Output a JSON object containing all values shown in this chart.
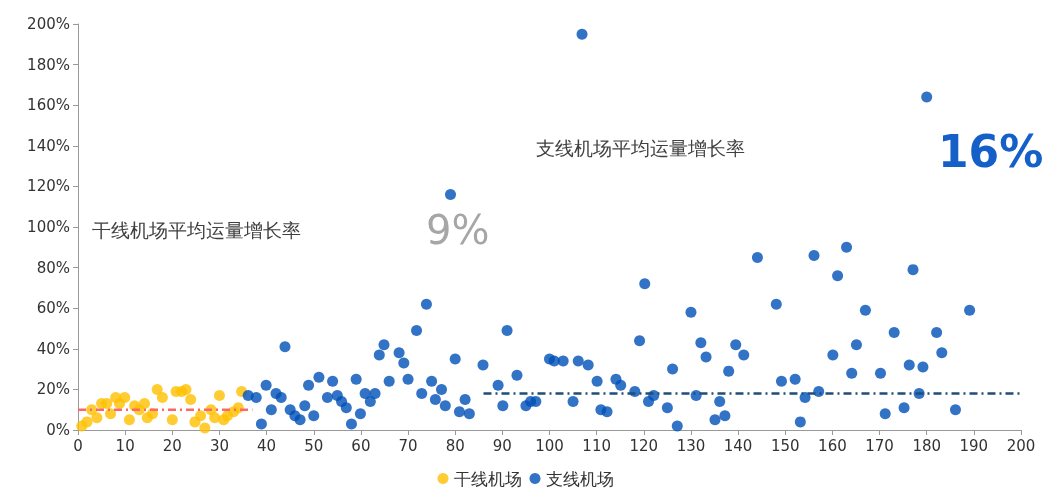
{
  "chart_data": {
    "type": "scatter",
    "legend": "bottom",
    "grid": false,
    "marker": "circle",
    "xlim": [
      0,
      200
    ],
    "xticks": [
      0,
      10,
      20,
      30,
      40,
      50,
      60,
      70,
      80,
      90,
      100,
      110,
      120,
      130,
      140,
      150,
      160,
      170,
      180,
      190,
      200
    ],
    "ylim": [
      0,
      200
    ],
    "yticks": [
      {
        "value": 0,
        "label": "0%"
      },
      {
        "value": 20,
        "label": "20%"
      },
      {
        "value": 40,
        "label": "40%"
      },
      {
        "value": 60,
        "label": "60%"
      },
      {
        "value": 80,
        "label": "80%"
      },
      {
        "value": 100,
        "label": "100%"
      },
      {
        "value": 120,
        "label": "120%"
      },
      {
        "value": 140,
        "label": "140%"
      },
      {
        "value": 160,
        "label": "160%"
      },
      {
        "value": 180,
        "label": "180%"
      },
      {
        "value": 200,
        "label": "200%"
      }
    ],
    "annotations": [
      "干线机场平均运量增长率",
      "9%",
      "支线机场平均运量增长率",
      "16%"
    ],
    "series": [
      {
        "name": "干线机场",
        "color": "#ffc000",
        "x": [
          0.8,
          1.9,
          2.9,
          4,
          5,
          6.1,
          6.9,
          8,
          8.8,
          9.9,
          10.9,
          12,
          13,
          14.1,
          14.7,
          15.8,
          16.8,
          17.9,
          20,
          20.8,
          22,
          22.9,
          23.9,
          24.8,
          26,
          26.9,
          28.2,
          29,
          30,
          30.9,
          31.7,
          33,
          34,
          34.7
        ],
        "values": [
          2,
          4,
          10,
          6,
          13,
          13,
          8,
          16,
          13,
          16,
          5,
          12,
          10,
          13,
          6,
          8,
          20,
          16,
          5,
          19,
          19,
          20,
          15,
          4,
          7,
          1,
          10,
          6,
          17,
          5,
          7,
          9,
          11,
          19
        ]
      },
      {
        "name": "支线机场",
        "color": "#0050b8",
        "x": [
          36.1,
          37.8,
          39.9,
          42,
          43.1,
          41,
          38.9,
          43.9,
          45,
          46,
          47.1,
          48.1,
          50,
          48.9,
          51.1,
          52.9,
          54,
          55,
          55.9,
          56.9,
          58,
          59,
          59.9,
          60.9,
          62,
          63,
          63.9,
          64.9,
          66,
          68.1,
          69.1,
          70,
          71.8,
          73.9,
          72.9,
          75,
          75.8,
          77.1,
          77.9,
          79,
          80,
          80.9,
          82.1,
          83,
          85.9,
          89.1,
          90.1,
          91,
          93.1,
          95,
          96,
          97.1,
          100,
          101,
          102.9,
          105,
          106.1,
          106.9,
          108.2,
          110.1,
          110.9,
          112.2,
          114.1,
          115.1,
          118.1,
          119.1,
          120.2,
          121,
          122.1,
          125,
          126.1,
          127.1,
          130,
          131.1,
          132.1,
          133.2,
          135.1,
          136.1,
          137.2,
          138,
          139.5,
          141.2,
          144.1,
          148.1,
          149.2,
          152.1,
          153.2,
          154.2,
          156.1,
          157.1,
          160.1,
          161.1,
          163,
          164.1,
          165.1,
          167,
          170.2,
          171.2,
          173.1,
          175.2,
          176.3,
          177.1,
          178.4,
          179.2,
          180,
          182.1,
          183.2,
          186.1,
          189.1
        ],
        "values": [
          17,
          16,
          22,
          18,
          16,
          10,
          3,
          41,
          10,
          7,
          5,
          12,
          7,
          22,
          26,
          16,
          24,
          17,
          14,
          11,
          3,
          25,
          8,
          18,
          14,
          18,
          37,
          42,
          24,
          38,
          33,
          25,
          49,
          62,
          18,
          24,
          15,
          20,
          12,
          116,
          35,
          9,
          15,
          8,
          32,
          22,
          12,
          49,
          27,
          12,
          14,
          14,
          35,
          34,
          34,
          14,
          34,
          195,
          32,
          24,
          10,
          9,
          25,
          22,
          19,
          44,
          72,
          14,
          17,
          11,
          30,
          2,
          58,
          17,
          43,
          36,
          5,
          14,
          7,
          29,
          42,
          37,
          85,
          62,
          24,
          25,
          4,
          16,
          86,
          19,
          37,
          76,
          90,
          28,
          42,
          59,
          28,
          8,
          48,
          11,
          32,
          79,
          18,
          31,
          164,
          48,
          38,
          10,
          59
        ]
      },
      {
        "type": "line",
        "color": "#ff6666",
        "line_style": "dashed",
        "marker": "none",
        "x": [
          0,
          37
        ],
        "values": [
          10,
          10
        ]
      },
      {
        "type": "line",
        "color": "#1f4e79",
        "line_style": "dashed",
        "marker": "none",
        "x": [
          86,
          200
        ],
        "values": [
          18,
          18
        ]
      }
    ]
  }
}
